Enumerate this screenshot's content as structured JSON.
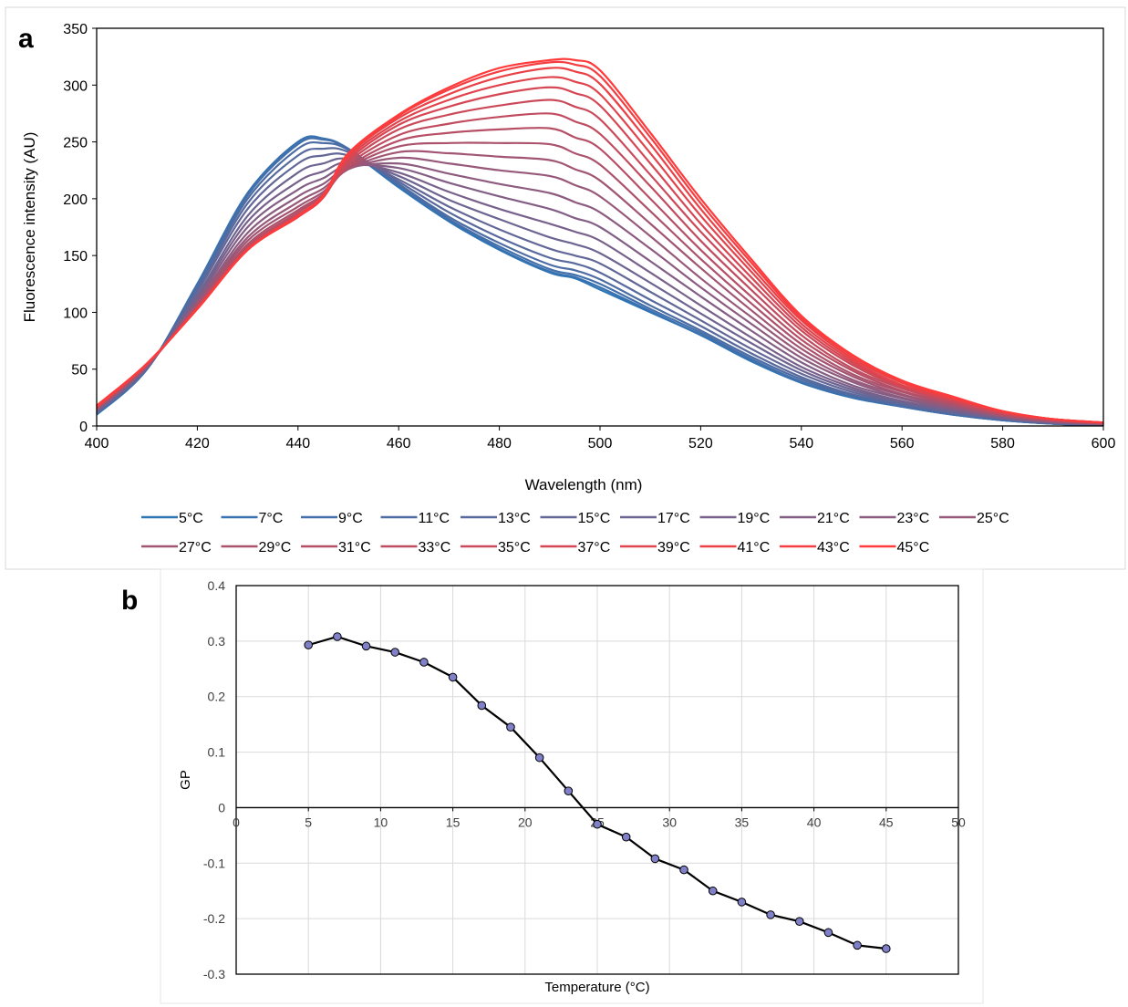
{
  "chart_data": [
    {
      "panel_label": "a",
      "type": "line",
      "xlabel": "Wavelength (nm)",
      "ylabel": "Fluorescence intensity (AU)",
      "xlim": [
        400,
        600
      ],
      "ylim": [
        0,
        350
      ],
      "xticks": [
        400,
        420,
        440,
        460,
        480,
        500,
        520,
        540,
        560,
        580,
        600
      ],
      "yticks": [
        0,
        50,
        100,
        150,
        200,
        250,
        300,
        350
      ],
      "grid": false,
      "legend_position": "bottom",
      "series_color_gradient": {
        "start": "#2e75b6",
        "end": "#ff3b3b"
      },
      "x": [
        400,
        410,
        420,
        430,
        440,
        445,
        450,
        460,
        470,
        480,
        490,
        495,
        500,
        510,
        520,
        530,
        540,
        550,
        560,
        570,
        580,
        590,
        600
      ],
      "series": [
        {
          "name": "5°C",
          "values": [
            10,
            50,
            125,
            205,
            250,
            253,
            243,
            210,
            180,
            155,
            135,
            130,
            120,
            100,
            80,
            57,
            38,
            25,
            17,
            10,
            5,
            2,
            1
          ]
        },
        {
          "name": "7°C",
          "values": [
            10,
            50,
            125,
            205,
            250,
            253,
            244,
            211,
            181,
            156,
            136,
            131,
            122,
            101,
            80,
            58,
            38,
            25,
            17,
            10,
            5,
            2,
            1
          ]
        },
        {
          "name": "9°C",
          "values": [
            11,
            50,
            124,
            203,
            248,
            252,
            244,
            212,
            182,
            158,
            138,
            133,
            125,
            103,
            82,
            59,
            39,
            26,
            17,
            10,
            5,
            2,
            1
          ]
        },
        {
          "name": "11°C",
          "values": [
            11,
            50,
            122,
            200,
            244,
            249,
            243,
            213,
            184,
            161,
            142,
            137,
            129,
            106,
            84,
            61,
            41,
            27,
            18,
            11,
            6,
            2,
            1
          ]
        },
        {
          "name": "13°C",
          "values": [
            12,
            51,
            120,
            196,
            238,
            244,
            241,
            215,
            188,
            166,
            148,
            143,
            135,
            111,
            88,
            64,
            43,
            28,
            19,
            11,
            6,
            2,
            1
          ]
        },
        {
          "name": "15°C",
          "values": [
            12,
            51,
            118,
            191,
            231,
            238,
            238,
            217,
            193,
            173,
            156,
            150,
            143,
            118,
            93,
            68,
            46,
            30,
            20,
            12,
            6,
            3,
            1
          ]
        },
        {
          "name": "17°C",
          "values": [
            13,
            52,
            115,
            185,
            223,
            231,
            235,
            220,
            199,
            182,
            166,
            160,
            152,
            126,
            99,
            73,
            49,
            32,
            21,
            13,
            7,
            3,
            1
          ]
        },
        {
          "name": "19°C",
          "values": [
            13,
            52,
            113,
            180,
            215,
            224,
            232,
            223,
            206,
            191,
            178,
            171,
            163,
            135,
            106,
            78,
            52,
            34,
            22,
            14,
            7,
            3,
            2
          ]
        },
        {
          "name": "21°C",
          "values": [
            14,
            52,
            111,
            175,
            208,
            218,
            229,
            227,
            214,
            202,
            191,
            183,
            175,
            145,
            114,
            84,
            56,
            36,
            24,
            15,
            8,
            3,
            2
          ]
        },
        {
          "name": "23°C",
          "values": [
            14,
            53,
            109,
            170,
            202,
            213,
            227,
            231,
            222,
            213,
            205,
            197,
            188,
            156,
            122,
            90,
            60,
            39,
            25,
            16,
            8,
            4,
            2
          ]
        },
        {
          "name": "25°C",
          "values": [
            15,
            53,
            108,
            166,
            197,
            209,
            226,
            236,
            231,
            225,
            220,
            212,
            202,
            167,
            130,
            96,
            64,
            41,
            27,
            17,
            9,
            4,
            2
          ]
        },
        {
          "name": "27°C",
          "values": [
            15,
            53,
            107,
            163,
            193,
            206,
            226,
            241,
            240,
            237,
            234,
            226,
            216,
            178,
            139,
            102,
            68,
            44,
            28,
            18,
            9,
            4,
            2
          ]
        },
        {
          "name": "29°C",
          "values": [
            15,
            53,
            106,
            160,
            190,
            204,
            227,
            246,
            249,
            249,
            248,
            240,
            230,
            189,
            147,
            108,
            72,
            46,
            30,
            19,
            10,
            5,
            2
          ]
        },
        {
          "name": "31°C",
          "values": [
            16,
            54,
            105,
            158,
            188,
            203,
            228,
            251,
            258,
            261,
            262,
            254,
            244,
            200,
            155,
            114,
            76,
            49,
            31,
            20,
            10,
            5,
            2
          ]
        },
        {
          "name": "33°C",
          "values": [
            16,
            54,
            104,
            157,
            186,
            202,
            230,
            256,
            266,
            272,
            275,
            268,
            257,
            211,
            163,
            120,
            80,
            51,
            33,
            21,
            11,
            5,
            3
          ]
        },
        {
          "name": "35°C",
          "values": [
            16,
            54,
            104,
            156,
            185,
            201,
            232,
            261,
            274,
            282,
            287,
            281,
            270,
            221,
            171,
            126,
            84,
            54,
            34,
            22,
            11,
            5,
            3
          ]
        },
        {
          "name": "37°C",
          "values": [
            17,
            54,
            104,
            155,
            184,
            201,
            234,
            265,
            281,
            292,
            298,
            293,
            282,
            231,
            178,
            131,
            87,
            56,
            35,
            23,
            12,
            6,
            3
          ]
        },
        {
          "name": "39°C",
          "values": [
            17,
            55,
            103,
            155,
            184,
            201,
            236,
            268,
            287,
            300,
            307,
            303,
            292,
            240,
            185,
            136,
            90,
            58,
            36,
            24,
            12,
            6,
            3
          ]
        },
        {
          "name": "41°C",
          "values": [
            17,
            55,
            103,
            155,
            184,
            202,
            238,
            271,
            292,
            307,
            315,
            312,
            301,
            248,
            191,
            140,
            93,
            60,
            38,
            24,
            13,
            6,
            3
          ]
        },
        {
          "name": "43°C",
          "values": [
            17,
            55,
            103,
            155,
            184,
            202,
            239,
            273,
            296,
            312,
            320,
            318,
            308,
            254,
            196,
            144,
            95,
            62,
            39,
            25,
            13,
            6,
            3
          ]
        },
        {
          "name": "45°C",
          "values": [
            18,
            55,
            103,
            155,
            185,
            203,
            240,
            274,
            298,
            315,
            322,
            322,
            313,
            258,
            200,
            147,
            97,
            63,
            40,
            26,
            13,
            6,
            3
          ]
        }
      ]
    },
    {
      "panel_label": "b",
      "type": "line",
      "xlabel": "Temperature (°C)",
      "ylabel": "GP",
      "xlim": [
        0,
        50
      ],
      "ylim": [
        -0.3,
        0.4
      ],
      "xticks": [
        0,
        5,
        10,
        15,
        20,
        25,
        30,
        35,
        40,
        45,
        50
      ],
      "yticks": [
        -0.3,
        -0.2,
        -0.1,
        0,
        0.1,
        0.2,
        0.3,
        0.4
      ],
      "grid": true,
      "legend_position": "none",
      "line_color": "#000000",
      "marker_color": "#8080c8",
      "x": [
        5,
        7,
        9,
        11,
        13,
        15,
        17,
        19,
        21,
        23,
        25,
        27,
        29,
        31,
        33,
        35,
        37,
        39,
        41,
        43,
        45
      ],
      "values": [
        0.293,
        0.308,
        0.291,
        0.28,
        0.262,
        0.235,
        0.184,
        0.145,
        0.09,
        0.03,
        -0.03,
        -0.053,
        -0.092,
        -0.112,
        -0.15,
        -0.17,
        -0.193,
        -0.205,
        -0.225,
        -0.248,
        -0.254
      ]
    }
  ]
}
